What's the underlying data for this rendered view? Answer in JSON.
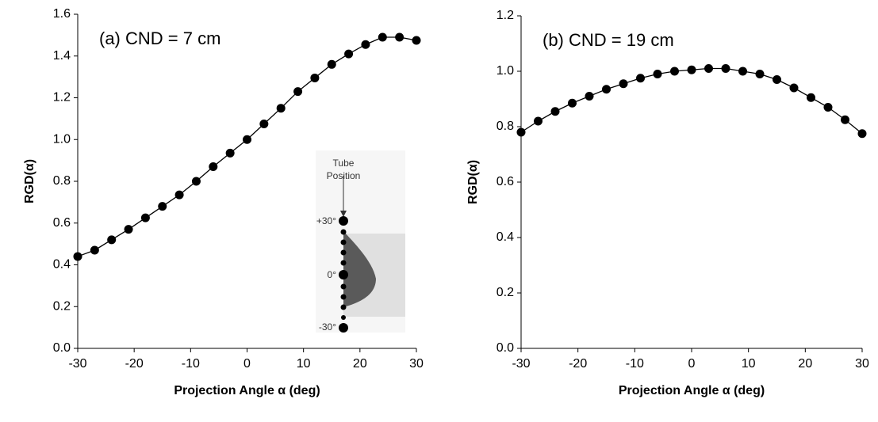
{
  "chart_data": [
    {
      "type": "line",
      "title": "(a) CND = 7 cm",
      "x_label": "Projection Angle α (deg)",
      "y_label": "RGD(α)",
      "x": [
        -30,
        -27,
        -24,
        -21,
        -18,
        -15,
        -12,
        -9,
        -6,
        -3,
        0,
        3,
        6,
        9,
        12,
        15,
        18,
        21,
        24,
        27,
        30
      ],
      "values": [
        0.44,
        0.47,
        0.52,
        0.57,
        0.625,
        0.68,
        0.735,
        0.8,
        0.87,
        0.935,
        1.0,
        1.075,
        1.15,
        1.23,
        1.295,
        1.36,
        1.41,
        1.455,
        1.49,
        1.49,
        1.475
      ],
      "color": "#000000",
      "xlim": [
        -30,
        30
      ],
      "xticks": [
        -30,
        -20,
        -10,
        0,
        10,
        20,
        30
      ],
      "ylim": [
        0,
        1.6
      ],
      "yticks": [
        {
          "value": 0,
          "label": "0.0"
        },
        0.2,
        0.4,
        0.6,
        0.8,
        {
          "value": 1,
          "label": "1.0"
        },
        1.2,
        1.4,
        1.6
      ],
      "inset_texts": [
        "Tube",
        "Position",
        "+30°",
        "0°",
        "-30°"
      ]
    },
    {
      "type": "line",
      "title": "(b) CND = 19 cm",
      "x_label": "Projection Angle α (deg)",
      "y_label": "RGD(α)",
      "x": [
        -30,
        -27,
        -24,
        -21,
        -18,
        -15,
        -12,
        -9,
        -6,
        -3,
        0,
        3,
        6,
        9,
        12,
        15,
        18,
        21,
        24,
        27,
        30
      ],
      "values": [
        0.78,
        0.82,
        0.855,
        0.885,
        0.91,
        0.935,
        0.955,
        0.975,
        0.99,
        1.0,
        1.005,
        1.01,
        1.01,
        1.0,
        0.99,
        0.97,
        0.94,
        0.905,
        0.87,
        0.825,
        0.775
      ],
      "color": "#000000",
      "xlim": [
        -30,
        30
      ],
      "xticks": [
        -30,
        -20,
        -10,
        0,
        10,
        20,
        30
      ],
      "ylim": [
        0,
        1.2
      ],
      "yticks": [
        {
          "value": 0,
          "label": "0.0"
        },
        0.2,
        0.4,
        0.6,
        0.8,
        {
          "value": 1,
          "label": "1.0"
        },
        1.2
      ]
    }
  ]
}
